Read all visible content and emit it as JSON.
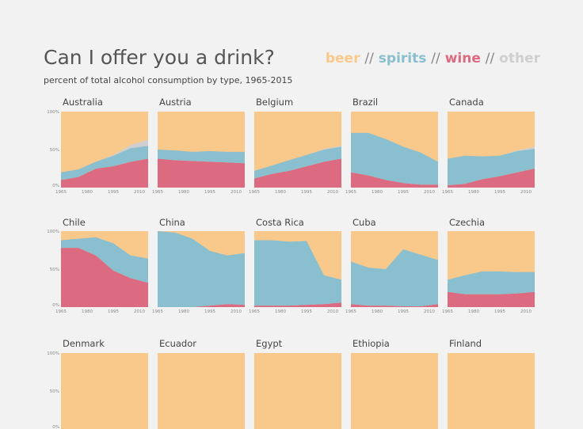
{
  "title": "Can I offer you a drink?",
  "subtitle": "percent of total alcohol consumption by type, 1965-2015",
  "legend": [
    {
      "label": "beer",
      "color": "#f9c98b"
    },
    {
      "label": "spirits",
      "color": "#89bfcf"
    },
    {
      "label": "wine",
      "color": "#dc6b81"
    },
    {
      "label": "other",
      "color": "#cfcfd1"
    }
  ],
  "legend_separator": "//",
  "chart_data": {
    "type": "area",
    "title": "Can I offer you a drink?",
    "subtitle": "percent of total alcohol consumption by type, 1965-2015",
    "x_ticks": [
      "1965",
      "1980",
      "1995",
      "2010"
    ],
    "y_ticks": [
      "100%",
      "50%",
      "0%"
    ],
    "ylim": [
      0,
      100
    ],
    "xlim": [
      1965,
      2015
    ],
    "stack_order": [
      "wine",
      "spirits",
      "other",
      "beer"
    ],
    "panels": [
      {
        "country": "Australia",
        "x": [
          1965,
          1975,
          1985,
          1995,
          2005,
          2015
        ],
        "wine": [
          10,
          14,
          25,
          28,
          34,
          38
        ],
        "spirits": [
          10,
          10,
          9,
          14,
          18,
          17
        ],
        "other": [
          0,
          0,
          0,
          1,
          4,
          8
        ]
      },
      {
        "country": "Austria",
        "x": [
          1965,
          1975,
          1985,
          1995,
          2005,
          2015
        ],
        "wine": [
          38,
          36,
          35,
          34,
          33,
          32
        ],
        "spirits": [
          12,
          13,
          12,
          14,
          14,
          15
        ],
        "other": [
          0,
          0,
          0,
          0,
          0,
          0
        ]
      },
      {
        "country": "Belgium",
        "x": [
          1965,
          1975,
          1985,
          1995,
          2005,
          2015
        ],
        "wine": [
          12,
          18,
          22,
          28,
          34,
          38
        ],
        "spirits": [
          10,
          11,
          14,
          15,
          16,
          16
        ],
        "other": [
          0,
          0,
          0,
          0,
          1,
          1
        ]
      },
      {
        "country": "Brazil",
        "x": [
          1965,
          1975,
          1985,
          1995,
          2005,
          2015
        ],
        "wine": [
          20,
          16,
          10,
          6,
          4,
          4
        ],
        "spirits": [
          52,
          56,
          54,
          48,
          42,
          30
        ],
        "other": [
          0,
          0,
          0,
          0,
          0,
          0
        ]
      },
      {
        "country": "Canada",
        "x": [
          1965,
          1975,
          1985,
          1995,
          2005,
          2015
        ],
        "wine": [
          3,
          5,
          11,
          15,
          20,
          25
        ],
        "spirits": [
          35,
          37,
          30,
          27,
          28,
          26
        ],
        "other": [
          0,
          0,
          0,
          0,
          1,
          3
        ]
      },
      {
        "country": "Chile",
        "x": [
          1965,
          1975,
          1985,
          1995,
          2005,
          2015
        ],
        "wine": [
          78,
          78,
          68,
          48,
          38,
          32
        ],
        "spirits": [
          10,
          12,
          24,
          36,
          30,
          32
        ],
        "other": [
          0,
          0,
          0,
          0,
          0,
          0
        ]
      },
      {
        "country": "China",
        "x": [
          1965,
          1975,
          1985,
          1995,
          2005,
          2015
        ],
        "wine": [
          0,
          0,
          0,
          2,
          4,
          3
        ],
        "spirits": [
          100,
          98,
          90,
          72,
          64,
          68
        ],
        "other": [
          0,
          0,
          0,
          0,
          0,
          0
        ]
      },
      {
        "country": "Costa Rica",
        "x": [
          1965,
          1975,
          1985,
          1995,
          2005,
          2015
        ],
        "wine": [
          2,
          2,
          2,
          3,
          4,
          6
        ],
        "spirits": [
          86,
          86,
          84,
          84,
          38,
          30
        ],
        "other": [
          0,
          0,
          0,
          0,
          0,
          0
        ]
      },
      {
        "country": "Cuba",
        "x": [
          1965,
          1975,
          1985,
          1995,
          2005,
          2015
        ],
        "wine": [
          4,
          2,
          2,
          1,
          1,
          4
        ],
        "spirits": [
          56,
          50,
          48,
          75,
          68,
          58
        ],
        "other": [
          0,
          0,
          0,
          0,
          0,
          0
        ]
      },
      {
        "country": "Czechia",
        "x": [
          1965,
          1975,
          1985,
          1995,
          2005,
          2015
        ],
        "wine": [
          20,
          17,
          17,
          17,
          18,
          20
        ],
        "spirits": [
          16,
          25,
          30,
          30,
          28,
          26
        ],
        "other": [
          0,
          0,
          0,
          0,
          0,
          0
        ]
      },
      {
        "country": "Denmark"
      },
      {
        "country": "Ecuador"
      },
      {
        "country": "Egypt"
      },
      {
        "country": "Ethiopia"
      },
      {
        "country": "Finland"
      }
    ]
  }
}
